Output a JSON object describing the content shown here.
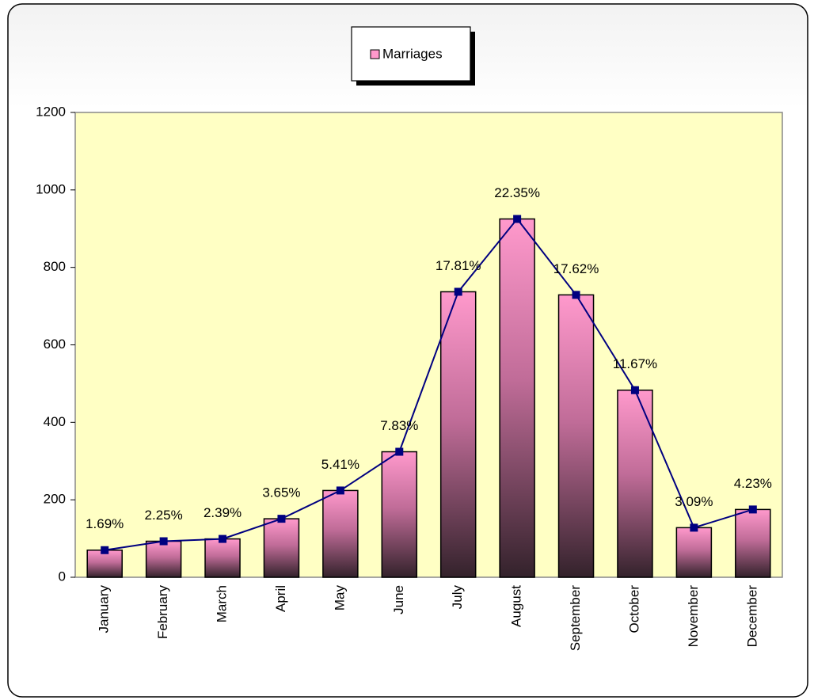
{
  "chart_data": {
    "type": "bar",
    "line_overlay": true,
    "categories": [
      "January",
      "February",
      "March",
      "April",
      "May",
      "June",
      "July",
      "August",
      "September",
      "October",
      "November",
      "December"
    ],
    "series": [
      {
        "name": "Marriages",
        "color": "#ff99cc",
        "line_color": "#000080",
        "values": [
          70,
          93,
          99,
          151,
          224,
          324,
          737,
          925,
          729,
          483,
          128,
          175
        ]
      }
    ],
    "annotations": [
      "1.69%",
      "2.25%",
      "2.39%",
      "3.65%",
      "5.41%",
      "7.83%",
      "17.81%",
      "22.35%",
      "17.62%",
      "11.67%",
      "3.09%",
      "4.23%"
    ],
    "ylim": [
      0,
      1200
    ],
    "yticks": [
      0,
      200,
      400,
      600,
      800,
      1000,
      1200
    ],
    "grid": false,
    "legend": "top",
    "plot_background": "#ffffc4"
  }
}
